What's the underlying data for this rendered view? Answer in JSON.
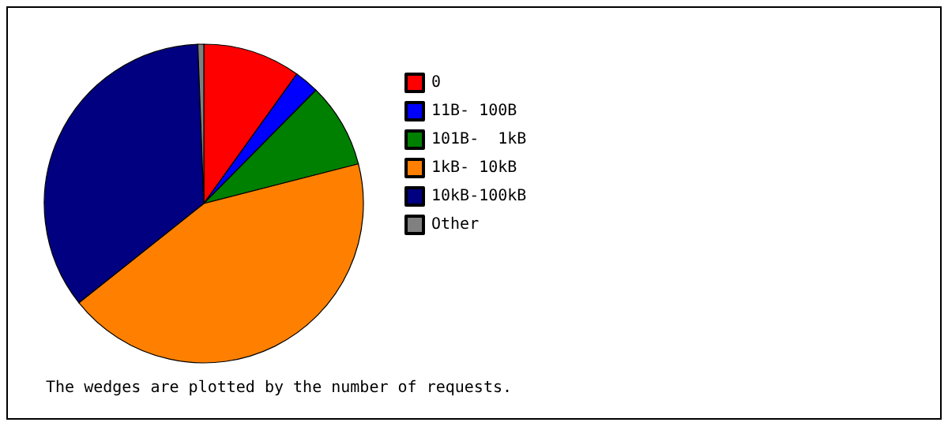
{
  "chart_data": {
    "type": "pie",
    "categories": [
      "0",
      "11B- 100B",
      "101B-  1kB",
      "1kB- 10kB",
      "10kB-100kB",
      "Other"
    ],
    "values": [
      9.9,
      2.5,
      8.6,
      43.3,
      35.1,
      0.6
    ],
    "colors": [
      "#ff0000",
      "#0000ff",
      "#008000",
      "#ff8000",
      "#000080",
      "#808080"
    ],
    "legend": "right",
    "annotations": [
      "The wedges are plotted by the number of requests."
    ]
  }
}
